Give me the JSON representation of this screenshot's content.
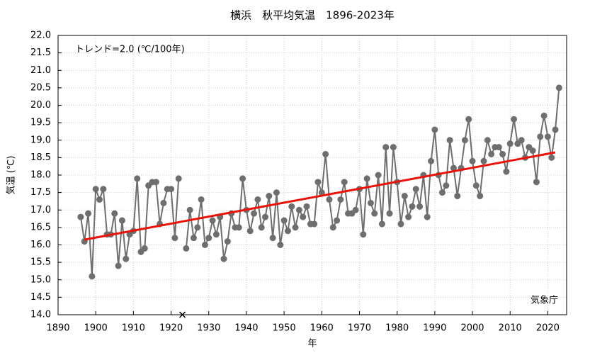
{
  "chart_data": {
    "type": "line",
    "title": "横浜　秋平均気温　1896-2023年",
    "annotation": "トレンド=2.0 (℃/100年)",
    "source": "気象庁",
    "xlabel": "年",
    "ylabel": "気温 (℃)",
    "x": [
      1896,
      1897,
      1898,
      1899,
      1900,
      1901,
      1902,
      1903,
      1904,
      1905,
      1906,
      1907,
      1908,
      1909,
      1910,
      1911,
      1912,
      1913,
      1914,
      1915,
      1916,
      1917,
      1918,
      1919,
      1920,
      1921,
      1922,
      1923,
      1924,
      1925,
      1926,
      1927,
      1928,
      1929,
      1930,
      1931,
      1932,
      1933,
      1934,
      1935,
      1936,
      1937,
      1938,
      1939,
      1940,
      1941,
      1942,
      1943,
      1944,
      1945,
      1946,
      1947,
      1948,
      1949,
      1950,
      1951,
      1952,
      1953,
      1954,
      1955,
      1956,
      1957,
      1958,
      1959,
      1960,
      1961,
      1962,
      1963,
      1964,
      1965,
      1966,
      1967,
      1968,
      1969,
      1970,
      1971,
      1972,
      1973,
      1974,
      1975,
      1976,
      1977,
      1978,
      1979,
      1980,
      1981,
      1982,
      1983,
      1984,
      1985,
      1986,
      1987,
      1988,
      1989,
      1990,
      1991,
      1992,
      1993,
      1994,
      1995,
      1996,
      1997,
      1998,
      1999,
      2000,
      2001,
      2002,
      2003,
      2004,
      2005,
      2006,
      2007,
      2008,
      2009,
      2010,
      2011,
      2012,
      2013,
      2014,
      2015,
      2016,
      2017,
      2018,
      2019,
      2020,
      2021,
      2022,
      2023
    ],
    "series": [
      {
        "name": "秋平均気温",
        "color": "#6e6e6e",
        "values": [
          16.8,
          16.1,
          16.9,
          15.1,
          17.6,
          17.3,
          17.6,
          16.3,
          16.3,
          16.9,
          15.4,
          16.7,
          15.6,
          16.3,
          16.4,
          17.9,
          15.8,
          15.9,
          17.7,
          17.8,
          17.8,
          16.6,
          17.2,
          17.6,
          17.6,
          16.2,
          17.9,
          null,
          15.9,
          17.0,
          16.2,
          16.5,
          17.3,
          16.0,
          16.2,
          16.7,
          16.3,
          16.8,
          15.6,
          16.1,
          16.9,
          16.5,
          16.5,
          17.9,
          17.0,
          16.4,
          16.9,
          17.3,
          16.5,
          16.8,
          17.4,
          16.2,
          17.5,
          16.0,
          16.7,
          16.4,
          17.1,
          16.5,
          17.0,
          16.8,
          17.1,
          16.6,
          16.6,
          17.8,
          17.5,
          18.6,
          17.3,
          16.5,
          16.7,
          17.3,
          17.8,
          16.9,
          16.9,
          17.0,
          17.6,
          16.3,
          17.9,
          17.2,
          16.9,
          18.0,
          16.6,
          18.8,
          16.9,
          18.8,
          17.8,
          16.6,
          17.4,
          16.8,
          17.1,
          17.6,
          17.1,
          18.0,
          16.8,
          18.4,
          19.3,
          18.0,
          17.5,
          17.7,
          19.0,
          18.2,
          17.4,
          18.2,
          19.0,
          19.6,
          18.4,
          17.7,
          17.4,
          18.4,
          19.0,
          18.6,
          18.8,
          18.8,
          18.6,
          18.1,
          18.9,
          19.6,
          18.9,
          19.0,
          18.5,
          18.8,
          18.7,
          17.8,
          19.1,
          19.7,
          19.1,
          18.5,
          19.3,
          20.5
        ]
      }
    ],
    "trend": {
      "x": [
        1897,
        2022
      ],
      "values": [
        16.15,
        18.65
      ],
      "color": "#e8140c"
    },
    "xlim": [
      1890,
      2025
    ],
    "xticks": [
      1890,
      1900,
      1910,
      1920,
      1930,
      1940,
      1950,
      1960,
      1970,
      1980,
      1990,
      2000,
      2010,
      2020
    ],
    "ylim": [
      14,
      22
    ],
    "yticks": [
      {
        "value": 14,
        "label": "14.0"
      },
      {
        "value": 14.5,
        "label": "14.5"
      },
      {
        "value": 15,
        "label": "15.0"
      },
      {
        "value": 15.5,
        "label": "15.5"
      },
      {
        "value": 16,
        "label": "16.0"
      },
      {
        "value": 16.5,
        "label": "16.5"
      },
      {
        "value": 17,
        "label": "17.0"
      },
      {
        "value": 17.5,
        "label": "17.5"
      },
      {
        "value": 18,
        "label": "18.0"
      },
      {
        "value": 18.5,
        "label": "18.5"
      },
      {
        "value": 19,
        "label": "19.0"
      },
      {
        "value": 19.5,
        "label": "19.5"
      },
      {
        "value": 20,
        "label": "20.0"
      },
      {
        "value": 20.5,
        "label": "20.5"
      },
      {
        "value": 21,
        "label": "21.0"
      },
      {
        "value": 21.5,
        "label": "21.5"
      },
      {
        "value": 22,
        "label": "22.0"
      }
    ],
    "grid": true
  }
}
